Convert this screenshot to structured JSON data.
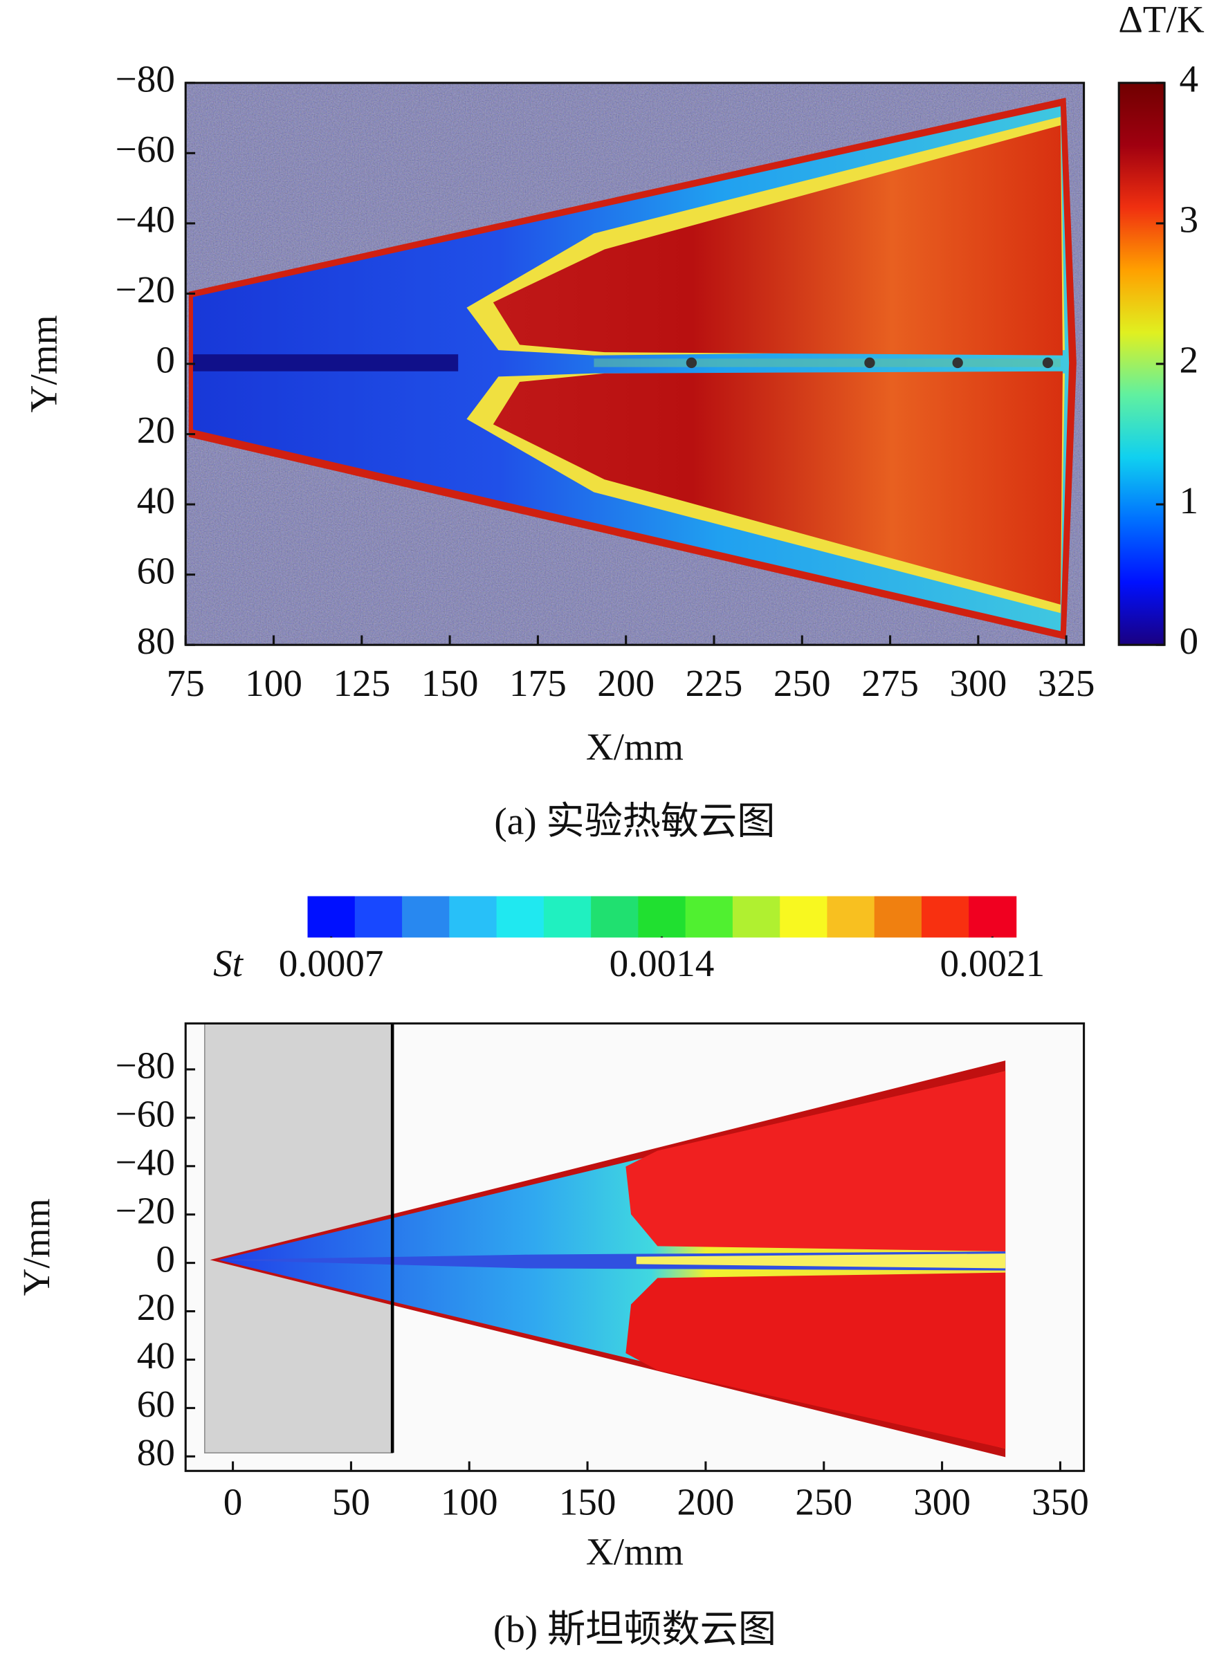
{
  "chart_data": [
    {
      "type": "heatmap",
      "caption": "(a) 实验热敏云图",
      "xlabel": "X/mm",
      "ylabel": "Y/mm",
      "xlim": [
        75,
        330
      ],
      "xticks": [
        75,
        100,
        125,
        150,
        175,
        200,
        225,
        250,
        275,
        300,
        325
      ],
      "ylim": [
        -80,
        80
      ],
      "yinverted": true,
      "yticks": [
        {
          "value": -80,
          "label": "−80"
        },
        {
          "value": -60,
          "label": "−60"
        },
        {
          "value": -40,
          "label": "−40"
        },
        {
          "value": -20,
          "label": "−20"
        },
        0,
        20,
        40,
        60,
        80
      ],
      "colorbar": {
        "orientation": "vertical",
        "label": "ΔT/K",
        "lim": [
          0,
          4
        ],
        "ticks": [
          0,
          1,
          2,
          3,
          4
        ],
        "colors": [
          "#1a0080",
          "#0010ff",
          "#0070ff",
          "#10d0f0",
          "#60f0a0",
          "#e0f020",
          "#ffa000",
          "#f03010",
          "#a00010",
          "#700000"
        ]
      }
    },
    {
      "type": "heatmap",
      "caption": "(b) 斯坦顿数云图",
      "xlabel": "X/mm",
      "ylabel": "Y/mm",
      "xlim": [
        -20,
        360
      ],
      "xticks": [
        0,
        50,
        100,
        150,
        200,
        250,
        300,
        350
      ],
      "ylim": [
        -99,
        86
      ],
      "yinverted": true,
      "yticks": [
        {
          "value": -80,
          "label": "−80"
        },
        {
          "value": -60,
          "label": "−60"
        },
        {
          "value": -40,
          "label": "−40"
        },
        {
          "value": -20,
          "label": "−20"
        },
        0,
        20,
        40,
        60,
        80
      ],
      "colorbar": {
        "orientation": "horizontal",
        "label": "St",
        "lim": [
          0.00065,
          0.00215
        ],
        "ticks": [
          0.0007,
          0.0014,
          0.0021
        ],
        "colors": [
          "#0010ff",
          "#1848ff",
          "#2888f0",
          "#28c0f8",
          "#20e8f0",
          "#20f0c0",
          "#20e070",
          "#20e030",
          "#50f030",
          "#b0f030",
          "#f8f820",
          "#f8c020",
          "#f08010",
          "#f83010",
          "#f00020"
        ]
      }
    }
  ]
}
